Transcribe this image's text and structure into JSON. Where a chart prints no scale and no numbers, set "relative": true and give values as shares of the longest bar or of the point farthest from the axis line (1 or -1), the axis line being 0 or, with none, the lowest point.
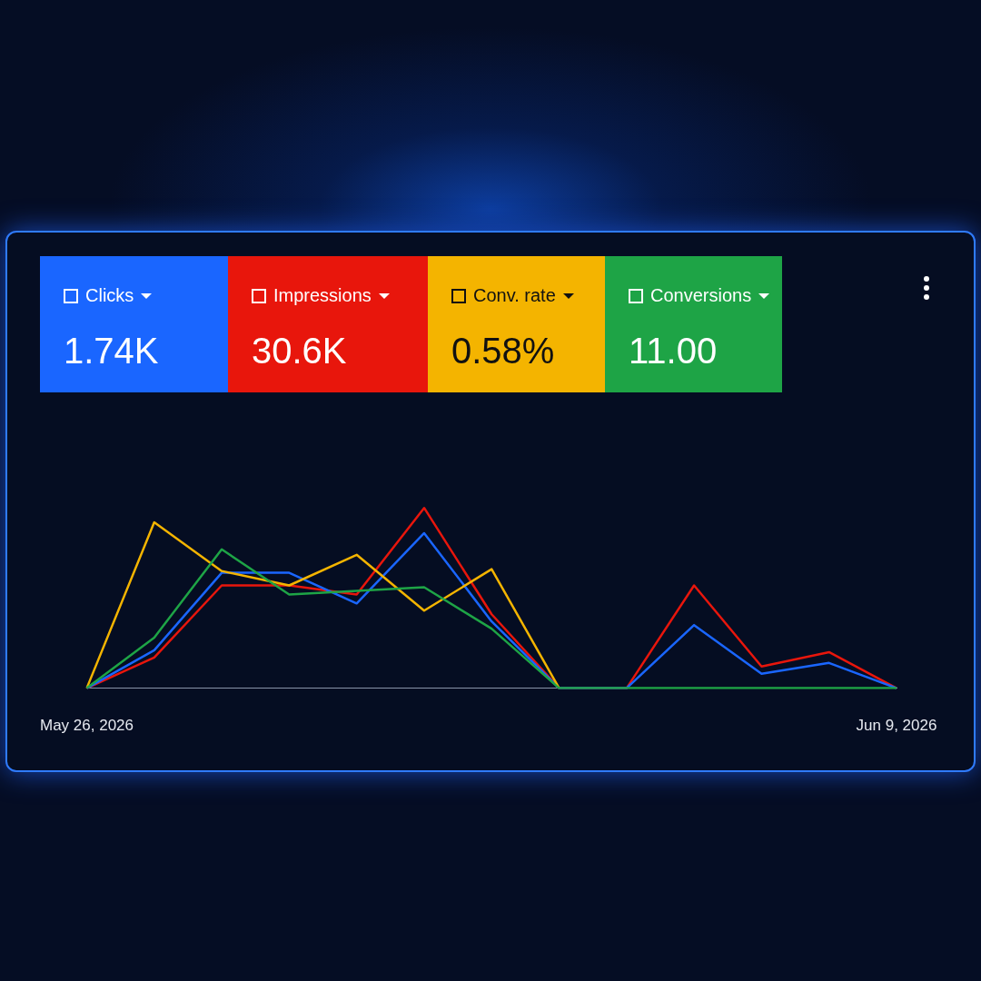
{
  "chart_data": {
    "type": "line",
    "relative": true,
    "legend": "top left",
    "marker": "none",
    "line_style": "solid",
    "categories": [
      "May 26, 2026",
      null,
      null,
      null,
      null,
      null,
      null,
      null,
      null,
      null,
      null,
      null,
      "Jun 9, 2026"
    ],
    "series": [
      {
        "name": "Conv. rate",
        "color": "#f4b400",
        "values": [
          0,
          0.92,
          0.65,
          0.57,
          0.74,
          0.43,
          0.66,
          0,
          null,
          null,
          null,
          null,
          null
        ]
      },
      {
        "name": "Conversions",
        "color": "#1ea446",
        "values": [
          0,
          0.28,
          0.77,
          0.52,
          0.54,
          0.56,
          0.33,
          0,
          0,
          0,
          0,
          0,
          0
        ]
      },
      {
        "name": "Clicks",
        "color": "#1a66ff",
        "values": [
          0,
          0.21,
          0.64,
          0.64,
          0.47,
          0.86,
          0.37,
          0,
          0,
          0.35,
          0.08,
          0.14,
          0
        ]
      },
      {
        "name": "Impressions",
        "color": "#e8160c",
        "values": [
          0,
          0.17,
          0.57,
          0.57,
          0.52,
          1,
          0.41,
          0,
          0,
          0.57,
          0.12,
          0.2,
          0
        ]
      }
    ],
    "annotations": [
      "0.58%",
      "11.00",
      "1.74K",
      "30.6K"
    ]
  }
}
